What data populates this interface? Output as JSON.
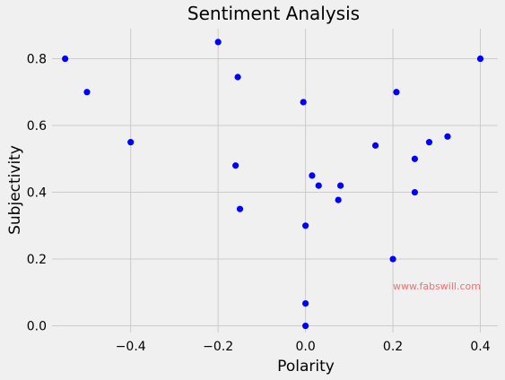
{
  "chart_data": {
    "type": "scatter",
    "title": "Sentiment Analysis",
    "xlabel": "Polarity",
    "ylabel": "Subjectivity",
    "xlim": [
      -0.58,
      0.44
    ],
    "ylim": [
      -0.02,
      0.89
    ],
    "xticks": [
      -0.4,
      -0.2,
      0.0,
      0.2,
      0.4
    ],
    "xtick_labels": [
      "−0.4",
      "−0.2",
      "0.0",
      "0.2",
      "0.4"
    ],
    "yticks": [
      0.0,
      0.2,
      0.4,
      0.6,
      0.8
    ],
    "ytick_labels": [
      "0.0",
      "0.2",
      "0.4",
      "0.6",
      "0.8"
    ],
    "grid": true,
    "marker_color": "#0000ff",
    "series": [
      {
        "x": [
          -0.55,
          -0.5,
          -0.4,
          -0.2,
          -0.155,
          -0.16,
          -0.15,
          -0.005,
          0.0,
          0.0,
          0.0,
          0.015,
          0.03,
          0.075,
          0.08,
          0.16,
          0.2,
          0.208,
          0.25,
          0.25,
          0.283,
          0.325,
          0.4
        ],
        "y": [
          0.8,
          0.7,
          0.55,
          0.85,
          0.745,
          0.48,
          0.35,
          0.67,
          0.3,
          0.067,
          0.0,
          0.45,
          0.42,
          0.377,
          0.42,
          0.54,
          0.2,
          0.7,
          0.5,
          0.4,
          0.55,
          0.567,
          0.8
        ]
      }
    ]
  },
  "watermark": "www.fabswill.com"
}
